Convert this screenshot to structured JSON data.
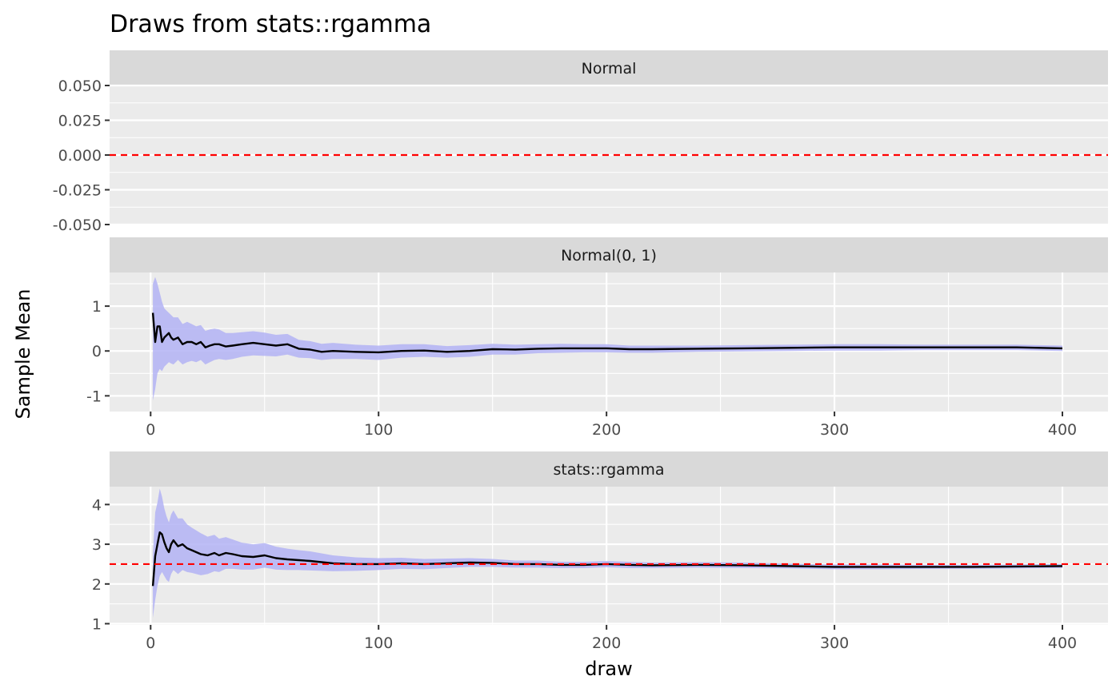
{
  "chart_data": {
    "type": "line",
    "title": "Draws from stats::rgamma",
    "xlabel": "draw",
    "ylabel": "Sample Mean",
    "colors": {
      "panel_background": "#ebebeb",
      "strip_background": "#d9d9d9",
      "grid": "#ffffff",
      "line": "#000000",
      "ribbon": "#b3b3f5",
      "reference_line": "#ff0000"
    },
    "panels": [
      {
        "strip": "Normal",
        "ylim": [
          -0.05,
          0.05
        ],
        "y_ticks": [
          -0.05,
          -0.025,
          0,
          0.025,
          0.05
        ],
        "y_tick_labels": [
          "-0.050",
          "-0.025",
          "0.000",
          "0.025",
          "0.050"
        ],
        "x_axis_shown": false,
        "reference_line": 0,
        "series": []
      },
      {
        "strip": "Normal(0, 1)",
        "ylim": [
          -1.35,
          1.75
        ],
        "y_ticks": [
          -1,
          0,
          1
        ],
        "y_tick_labels": [
          "-1",
          "0",
          "1"
        ],
        "x_axis_shown": true,
        "xlim": [
          -18,
          420
        ],
        "x_ticks": [
          0,
          100,
          200,
          300,
          400
        ],
        "x_tick_labels": [
          "0",
          "100",
          "200",
          "300",
          "400"
        ],
        "reference_line": null,
        "series": [
          {
            "x": [
              1,
              2,
              3,
              4,
              5,
              6,
              7,
              8,
              9,
              10,
              12,
              14,
              16,
              18,
              20,
              22,
              24,
              26,
              28,
              30,
              33,
              36,
              40,
              45,
              50,
              55,
              60,
              65,
              70,
              75,
              80,
              90,
              100,
              110,
              120,
              130,
              140,
              150,
              160,
              170,
              180,
              190,
              200,
              210,
              220,
              240,
              260,
              280,
              300,
              320,
              340,
              360,
              380,
              400
            ],
            "mean": [
              0.85,
              0.2,
              0.55,
              0.55,
              0.2,
              0.3,
              0.35,
              0.4,
              0.3,
              0.25,
              0.3,
              0.15,
              0.2,
              0.2,
              0.15,
              0.2,
              0.08,
              0.12,
              0.15,
              0.15,
              0.1,
              0.12,
              0.15,
              0.18,
              0.15,
              0.12,
              0.15,
              0.05,
              0.03,
              -0.02,
              0.0,
              -0.02,
              -0.03,
              0.0,
              0.01,
              -0.02,
              0.0,
              0.04,
              0.03,
              0.05,
              0.06,
              0.06,
              0.06,
              0.04,
              0.04,
              0.05,
              0.06,
              0.07,
              0.08,
              0.08,
              0.08,
              0.08,
              0.08,
              0.06
            ],
            "lower": [
              -1.1,
              -0.85,
              -0.5,
              -0.4,
              -0.45,
              -0.35,
              -0.3,
              -0.25,
              -0.28,
              -0.3,
              -0.2,
              -0.3,
              -0.25,
              -0.22,
              -0.25,
              -0.2,
              -0.3,
              -0.25,
              -0.2,
              -0.18,
              -0.2,
              -0.18,
              -0.13,
              -0.1,
              -0.11,
              -0.12,
              -0.08,
              -0.15,
              -0.16,
              -0.2,
              -0.18,
              -0.18,
              -0.2,
              -0.15,
              -0.13,
              -0.15,
              -0.13,
              -0.08,
              -0.08,
              -0.05,
              -0.04,
              -0.03,
              -0.03,
              -0.04,
              -0.04,
              -0.02,
              -0.01,
              0.0,
              0.01,
              0.01,
              0.02,
              0.02,
              0.02,
              0.0
            ],
            "upper": [
              1.5,
              1.65,
              1.5,
              1.3,
              1.1,
              0.95,
              0.9,
              0.85,
              0.8,
              0.75,
              0.75,
              0.6,
              0.65,
              0.6,
              0.55,
              0.58,
              0.45,
              0.48,
              0.5,
              0.48,
              0.4,
              0.4,
              0.42,
              0.44,
              0.41,
              0.36,
              0.38,
              0.25,
              0.22,
              0.16,
              0.18,
              0.14,
              0.12,
              0.15,
              0.15,
              0.11,
              0.13,
              0.16,
              0.14,
              0.15,
              0.16,
              0.15,
              0.15,
              0.12,
              0.12,
              0.12,
              0.13,
              0.14,
              0.15,
              0.15,
              0.14,
              0.14,
              0.14,
              0.12
            ]
          }
        ]
      },
      {
        "strip": "stats::rgamma",
        "ylim": [
          0.97,
          4.45
        ],
        "y_ticks": [
          1,
          2,
          3,
          4
        ],
        "y_tick_labels": [
          "1",
          "2",
          "3",
          "4"
        ],
        "x_axis_shown": true,
        "xlim": [
          -18,
          420
        ],
        "x_ticks": [
          0,
          100,
          200,
          300,
          400
        ],
        "x_tick_labels": [
          "0",
          "100",
          "200",
          "300",
          "400"
        ],
        "reference_line": 2.5,
        "series": [
          {
            "x": [
              1,
              2,
              3,
              4,
              5,
              6,
              7,
              8,
              9,
              10,
              12,
              14,
              16,
              18,
              20,
              22,
              25,
              28,
              30,
              33,
              36,
              40,
              45,
              50,
              55,
              60,
              65,
              70,
              75,
              80,
              90,
              100,
              110,
              120,
              130,
              140,
              150,
              160,
              170,
              180,
              190,
              200,
              210,
              220,
              240,
              260,
              280,
              300,
              320,
              340,
              360,
              380,
              400
            ],
            "mean": [
              1.95,
              2.7,
              3.0,
              3.3,
              3.25,
              3.05,
              2.9,
              2.8,
              3.0,
              3.1,
              2.95,
              3.0,
              2.9,
              2.85,
              2.8,
              2.75,
              2.72,
              2.78,
              2.72,
              2.78,
              2.75,
              2.7,
              2.68,
              2.72,
              2.65,
              2.62,
              2.6,
              2.58,
              2.55,
              2.52,
              2.5,
              2.5,
              2.52,
              2.5,
              2.52,
              2.54,
              2.53,
              2.5,
              2.5,
              2.48,
              2.48,
              2.5,
              2.48,
              2.47,
              2.48,
              2.47,
              2.45,
              2.43,
              2.43,
              2.43,
              2.43,
              2.44,
              2.45
            ],
            "lower": [
              1.15,
              1.6,
              1.95,
              2.2,
              2.3,
              2.2,
              2.1,
              2.05,
              2.25,
              2.35,
              2.25,
              2.35,
              2.3,
              2.28,
              2.25,
              2.22,
              2.25,
              2.32,
              2.3,
              2.38,
              2.38,
              2.36,
              2.36,
              2.41,
              2.36,
              2.35,
              2.35,
              2.34,
              2.33,
              2.32,
              2.33,
              2.35,
              2.38,
              2.37,
              2.4,
              2.43,
              2.43,
              2.41,
              2.41,
              2.4,
              2.4,
              2.42,
              2.4,
              2.4,
              2.41,
              2.4,
              2.39,
              2.37,
              2.37,
              2.38,
              2.38,
              2.39,
              2.4
            ],
            "upper": [
              2.75,
              3.8,
              4.05,
              4.4,
              4.2,
              3.9,
              3.7,
              3.55,
              3.75,
              3.85,
              3.65,
              3.65,
              3.5,
              3.42,
              3.35,
              3.28,
              3.19,
              3.24,
              3.14,
              3.18,
              3.12,
              3.04,
              3.0,
              3.03,
              2.94,
              2.89,
              2.85,
              2.82,
              2.77,
              2.72,
              2.67,
              2.65,
              2.66,
              2.63,
              2.64,
              2.65,
              2.63,
              2.59,
              2.59,
              2.56,
              2.56,
              2.58,
              2.56,
              2.54,
              2.55,
              2.54,
              2.51,
              2.49,
              2.49,
              2.48,
              2.48,
              2.49,
              2.5
            ]
          }
        ]
      }
    ]
  }
}
